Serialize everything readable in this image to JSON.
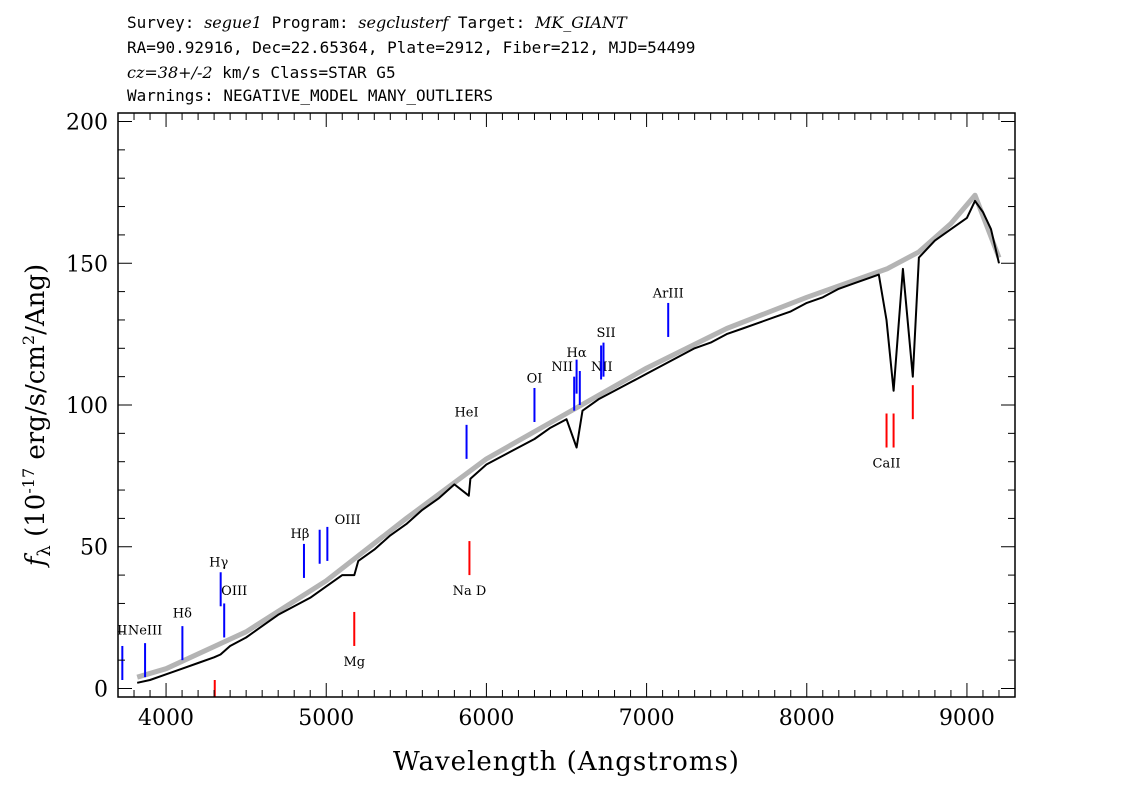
{
  "header": {
    "line1": {
      "survey_label": "Survey: ",
      "survey": "segue1",
      "program_label": " Program: ",
      "program": "segclusterf",
      "target_label": " Target: ",
      "target": "MK_GIANT"
    },
    "line2": "RA=90.92916, Dec=22.65364, Plate=2912, Fiber=212, MJD=54499",
    "line3": {
      "cz": "cz=38+/-2",
      "rest": " km/s Class=STAR G5"
    },
    "line4": "Warnings: NEGATIVE_MODEL MANY_OUTLIERS"
  },
  "chart_data": {
    "type": "line",
    "title": "",
    "xlabel": "Wavelength (Angstroms)",
    "ylabel": "f_λ (10^-17 erg/s/cm^2/Ang)",
    "xlim": [
      3700,
      9300
    ],
    "ylim": [
      -3,
      203
    ],
    "xticks": [
      4000,
      5000,
      6000,
      7000,
      8000,
      9000
    ],
    "yticks": [
      0,
      50,
      100,
      150,
      200
    ],
    "grid": false,
    "legend": "none",
    "series": [
      {
        "color": "#000000",
        "x": [
          3820,
          3900,
          4000,
          4100,
          4200,
          4300,
          4340,
          4400,
          4500,
          4600,
          4700,
          4800,
          4900,
          5000,
          5100,
          5175,
          5200,
          5300,
          5400,
          5500,
          5600,
          5700,
          5800,
          5890,
          5900,
          6000,
          6100,
          6200,
          6300,
          6400,
          6500,
          6563,
          6600,
          6700,
          6800,
          6900,
          7000,
          7100,
          7200,
          7300,
          7400,
          7500,
          7600,
          7700,
          7800,
          7900,
          8000,
          8100,
          8200,
          8300,
          8400,
          8450,
          8498,
          8542,
          8600,
          8662,
          8700,
          8800,
          8900,
          9000,
          9050,
          9100,
          9150,
          9200
        ],
        "y": [
          2,
          3,
          5,
          7,
          9,
          11,
          12,
          15,
          18,
          22,
          26,
          29,
          32,
          36,
          40,
          40,
          45,
          49,
          54,
          58,
          63,
          67,
          72,
          68,
          74,
          79,
          82,
          85,
          88,
          92,
          95,
          85,
          98,
          102,
          105,
          108,
          111,
          114,
          117,
          120,
          122,
          125,
          127,
          129,
          131,
          133,
          136,
          138,
          141,
          143,
          145,
          146,
          130,
          105,
          148,
          110,
          152,
          158,
          162,
          166,
          172,
          168,
          162,
          150
        ]
      },
      {
        "color": "#b4b4b4",
        "x": [
          3820,
          4000,
          4500,
          5000,
          5500,
          6000,
          6500,
          7000,
          7500,
          8000,
          8500,
          8700,
          8900,
          9050,
          9200
        ],
        "y": [
          4,
          7,
          20,
          38,
          60,
          81,
          97,
          113,
          127,
          138,
          148,
          154,
          164,
          174,
          152
        ]
      }
    ],
    "line_markers": [
      {
        "label": "II",
        "x": 3727,
        "color": "#0000ff",
        "y_bottom": 3,
        "y_top": 15,
        "label_y": 19,
        "label_dx": 0
      },
      {
        "label": "NeIII",
        "x": 3869,
        "color": "#0000ff",
        "y_bottom": 4,
        "y_top": 16,
        "label_y": 19,
        "label_dx": 0
      },
      {
        "label": "Hδ",
        "x": 4102,
        "color": "#0000ff",
        "y_bottom": 10,
        "y_top": 22,
        "label_y": 25,
        "label_dx": 0
      },
      {
        "label": "Hγ",
        "x": 4341,
        "color": "#0000ff",
        "y_bottom": 29,
        "y_top": 41,
        "label_y": 43,
        "label_dx": -2
      },
      {
        "label": "OIII",
        "x": 4363,
        "color": "#0000ff",
        "y_bottom": 18,
        "y_top": 30,
        "label_y": 33,
        "label_dx": 10
      },
      {
        "label": "Hβ",
        "x": 4861,
        "color": "#0000ff",
        "y_bottom": 39,
        "y_top": 51,
        "label_y": 53,
        "label_dx": -4
      },
      {
        "label": "OIII",
        "x": 4959,
        "color": "#0000ff",
        "y_bottom": 44,
        "y_top": 56,
        "label_y": 58,
        "label_dx": 28
      },
      {
        "label": "",
        "x": 5007,
        "color": "#0000ff",
        "y_bottom": 45,
        "y_top": 57,
        "label_y": 0,
        "label_dx": 0
      },
      {
        "label": "HeI",
        "x": 5876,
        "color": "#0000ff",
        "y_bottom": 81,
        "y_top": 93,
        "label_y": 96,
        "label_dx": 0
      },
      {
        "label": "OI",
        "x": 6300,
        "color": "#0000ff",
        "y_bottom": 94,
        "y_top": 106,
        "label_y": 108,
        "label_dx": 0
      },
      {
        "label": "NII",
        "x": 6548,
        "color": "#0000ff",
        "y_bottom": 98,
        "y_top": 110,
        "label_y": 112,
        "label_dx": -12
      },
      {
        "label": "Hα",
        "x": 6563,
        "color": "#0000ff",
        "y_bottom": 104,
        "y_top": 116,
        "label_y": 117,
        "label_dx": 0
      },
      {
        "label": "NII",
        "x": 6583,
        "color": "#0000ff",
        "y_bottom": 100,
        "y_top": 112,
        "label_y": 112,
        "label_dx": 22
      },
      {
        "label": "SII",
        "x": 6716,
        "color": "#0000ff",
        "y_bottom": 109,
        "y_top": 121,
        "label_y": 124,
        "label_dx": 5
      },
      {
        "label": "",
        "x": 6731,
        "color": "#0000ff",
        "y_bottom": 110,
        "y_top": 122,
        "label_y": 0,
        "label_dx": 0
      },
      {
        "label": "ArIII",
        "x": 7135,
        "color": "#0000ff",
        "y_bottom": 124,
        "y_top": 136,
        "label_y": 138,
        "label_dx": 0
      },
      {
        "label": "",
        "x": 4304,
        "color": "#ff0000",
        "y_bottom": -3,
        "y_top": 3,
        "label_y": 0,
        "label_dx": 0
      },
      {
        "label": "Mg",
        "x": 5175,
        "color": "#ff0000",
        "y_bottom": 15,
        "y_top": 27,
        "label_y": 8,
        "label_dx": 0
      },
      {
        "label": "Na D",
        "x": 5894,
        "color": "#ff0000",
        "y_bottom": 40,
        "y_top": 52,
        "label_y": 33,
        "label_dx": 0
      },
      {
        "label": "CaII",
        "x": 8498,
        "color": "#ff0000",
        "y_bottom": 85,
        "y_top": 97,
        "label_y": 78,
        "label_dx": 0
      },
      {
        "label": "",
        "x": 8542,
        "color": "#ff0000",
        "y_bottom": 85,
        "y_top": 97,
        "label_y": 0,
        "label_dx": 0
      },
      {
        "label": "",
        "x": 8662,
        "color": "#ff0000",
        "y_bottom": 95,
        "y_top": 107,
        "label_y": 0,
        "label_dx": 0
      }
    ]
  }
}
